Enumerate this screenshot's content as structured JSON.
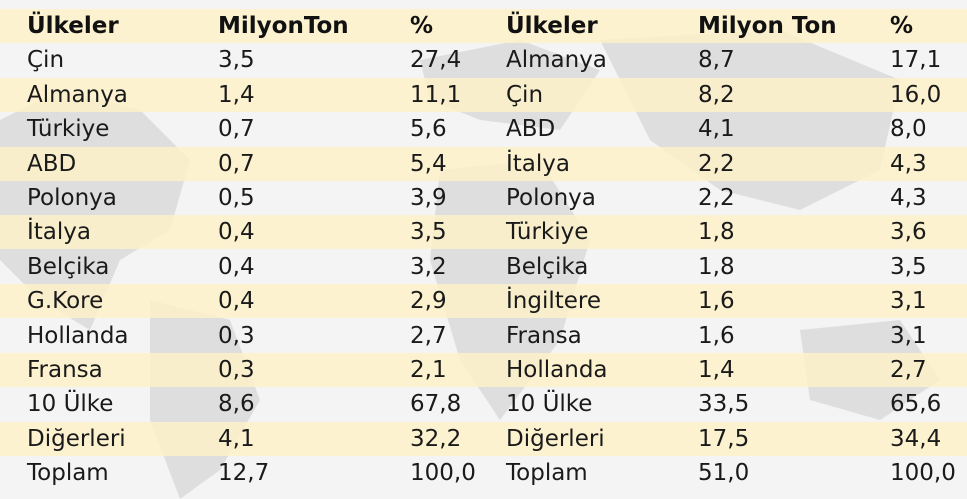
{
  "tables": [
    {
      "headers": [
        "Ülkeler",
        "MilyonTon",
        "%"
      ],
      "rows": [
        [
          "Çin",
          "3,5",
          "27,4"
        ],
        [
          "Almanya",
          "1,4",
          "11,1"
        ],
        [
          "Türkiye",
          "0,7",
          "5,6"
        ],
        [
          "ABD",
          "0,7",
          "5,4"
        ],
        [
          "Polonya",
          "0,5",
          "3,9"
        ],
        [
          "İtalya",
          "0,4",
          "3,5"
        ],
        [
          "Belçika",
          "0,4",
          "3,2"
        ],
        [
          "G.Kore",
          "0,4",
          "2,9"
        ],
        [
          "Hollanda",
          "0,3",
          "2,7"
        ],
        [
          "Fransa",
          "0,3",
          "2,1"
        ],
        [
          "10 Ülke",
          "8,6",
          "67,8"
        ],
        [
          "Diğerleri",
          "4,1",
          "32,2"
        ],
        [
          "Toplam",
          "12,7",
          "100,0"
        ]
      ]
    },
    {
      "headers": [
        "Ülkeler",
        "Milyon Ton",
        "%"
      ],
      "rows": [
        [
          "Almanya",
          "8,7",
          "17,1"
        ],
        [
          "Çin",
          "8,2",
          "16,0"
        ],
        [
          "ABD",
          "4,1",
          "8,0"
        ],
        [
          "İtalya",
          "2,2",
          "4,3"
        ],
        [
          "Polonya",
          "2,2",
          "4,3"
        ],
        [
          "Türkiye",
          "1,8",
          "3,6"
        ],
        [
          "Belçika",
          "1,8",
          "3,5"
        ],
        [
          "İngiltere",
          "1,6",
          "3,1"
        ],
        [
          "Fransa",
          "1,6",
          "3,1"
        ],
        [
          "Hollanda",
          "1,4",
          "2,7"
        ],
        [
          "10 Ülke",
          "33,5",
          "65,6"
        ],
        [
          "Diğerleri",
          "17,5",
          "34,4"
        ],
        [
          "Toplam",
          "51,0",
          "100,0"
        ]
      ]
    }
  ]
}
